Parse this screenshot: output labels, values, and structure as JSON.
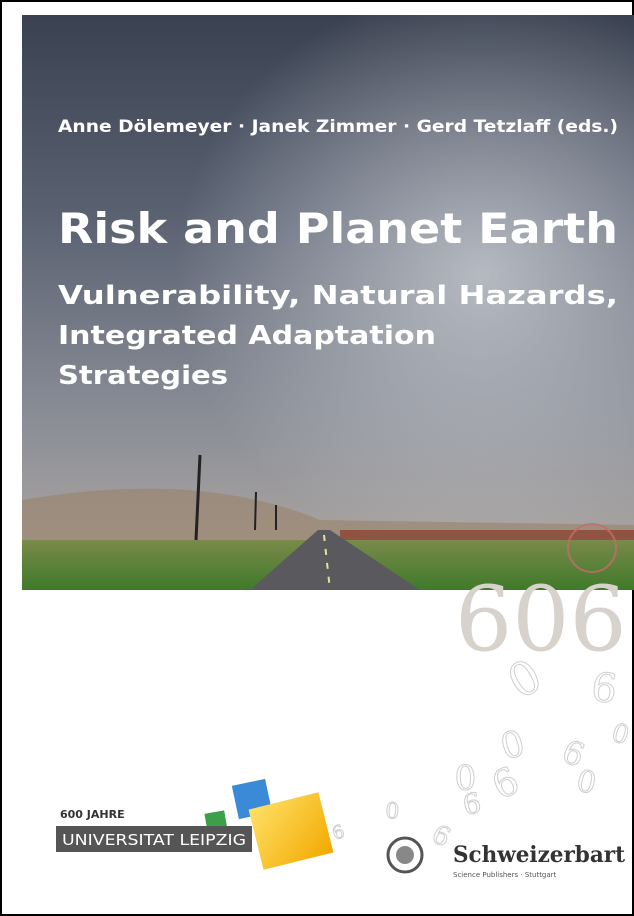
{
  "cover": {
    "authors": "Anne Dölemeyer · Janek Zimmer · Gerd Tetzlaff (eds.)",
    "title": "Risk and Planet Earth",
    "subtitle_lines": [
      "Vulnerability, Natural Hazards,",
      "Integrated Adaptation",
      "Strategies"
    ],
    "series_number": "606",
    "scattered_digits": [
      "0",
      "6",
      "0",
      "6",
      "0",
      "6",
      "0",
      "6",
      "6",
      "0",
      "6",
      "0"
    ]
  },
  "logos": {
    "university_anniversary": "600 JAHRE",
    "university_name": "UNIVERSITAT LEIPZIG",
    "publisher": "Schweizerbart",
    "publisher_tagline": "Science Publishers · Stuttgart"
  }
}
